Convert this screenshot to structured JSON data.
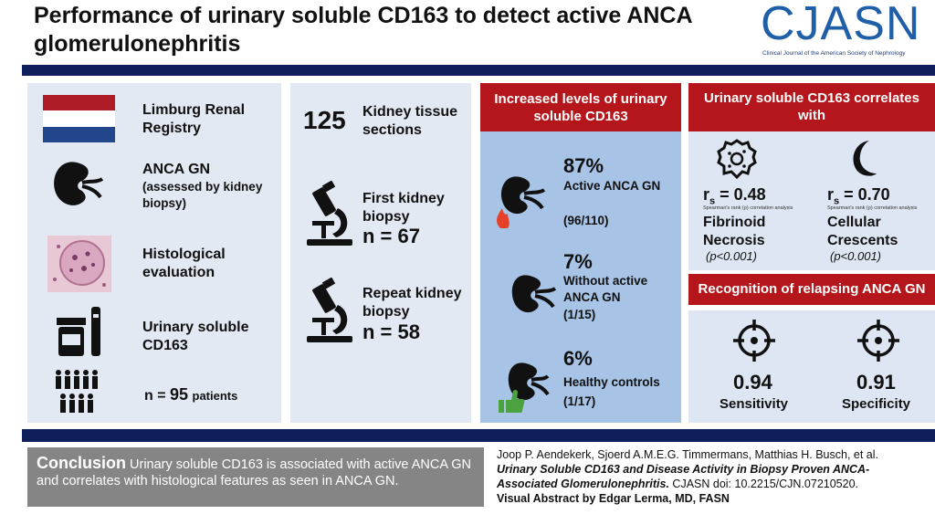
{
  "title": "Performance of urinary soluble CD163 to detect active ANCA glomerulonephritis",
  "logo": {
    "name": "CJASN",
    "subtitle": "Clinical Journal of the American Society of Nephrology"
  },
  "colors": {
    "navy": "#0f1f5c",
    "red": "#b5161b",
    "panel_light": "#e2e9f3",
    "panel_blue": "#a7c3e6",
    "flag_red": "#ae1c28",
    "flag_white": "#ffffff",
    "flag_blue": "#21468b"
  },
  "cohort": {
    "registry": "Limburg Renal Registry",
    "anca_title": "ANCA GN",
    "anca_sub": "(assessed by kidney biopsy)",
    "histology": "Histological evaluation",
    "urine": "Urinary soluble CD163",
    "n_prefix": "n = ",
    "n_value": "95",
    "n_suffix": "patients",
    "icons": [
      "netherlands-flag",
      "kidney-icon",
      "histology-image",
      "urine-sample-icon",
      "people-icon"
    ]
  },
  "sections": {
    "count": "125",
    "count_label": "Kidney tissue sections",
    "first_label": "First kidney biopsy",
    "first_n": "n = 67",
    "repeat_label": "Repeat kidney biopsy",
    "repeat_n": "n = 58",
    "icons": [
      "microscope-icon",
      "microscope-icon"
    ]
  },
  "increased": {
    "header": "Increased levels of urinary soluble CD163",
    "items": [
      {
        "pct": "87%",
        "label": "Active ANCA GN",
        "frac": "(96/110)",
        "icon": "kidney-fire-icon"
      },
      {
        "pct": "7%",
        "label": "Without active ANCA GN",
        "frac": "(1/15)",
        "icon": "kidney-icon"
      },
      {
        "pct": "6%",
        "label": "Healthy controls",
        "frac": "(1/17)",
        "icon": "kidney-thumbs-up-icon"
      }
    ]
  },
  "correlates": {
    "header": "Urinary soluble CD163 correlates with",
    "items": [
      {
        "rs_label": "r",
        "rs_sub": "s",
        "rs_value": " = 0.48",
        "note": "Spearman's rank (ρ) correlation analysis",
        "feature": "Fibrinoid Necrosis",
        "p": "(p<0.001)",
        "icon": "necrosis-cell-icon"
      },
      {
        "rs_label": "r",
        "rs_sub": "s",
        "rs_value": " = 0.70",
        "note": "Spearman's rank (ρ) correlation analysis",
        "feature": "Cellular Crescents",
        "p": "(p<0.001)",
        "icon": "crescent-icon"
      }
    ]
  },
  "relapse": {
    "header": "Recognition of relapsing ANCA GN",
    "items": [
      {
        "value": "0.94",
        "label": "Sensitivity",
        "icon": "target-icon"
      },
      {
        "value": "0.91",
        "label": "Specificity",
        "icon": "target-icon"
      }
    ]
  },
  "conclusion": {
    "head": "Conclusion",
    "text": " Urinary soluble CD163 is associated with active ANCA GN and correlates with histological features as seen in ANCA GN."
  },
  "citation": {
    "authors": "Joop P. Aendekerk, Sjoerd A.M.E.G. Timmermans, Matthias H. Busch, et al.",
    "article": "Urinary Soluble CD163 and Disease Activity in Biopsy Proven ANCA-Associated Glomerulonephritis.",
    "doi": " CJASN doi: 10.2215/CJN.07210520.",
    "credit": "Visual Abstract by Edgar Lerma, MD, FASN"
  }
}
